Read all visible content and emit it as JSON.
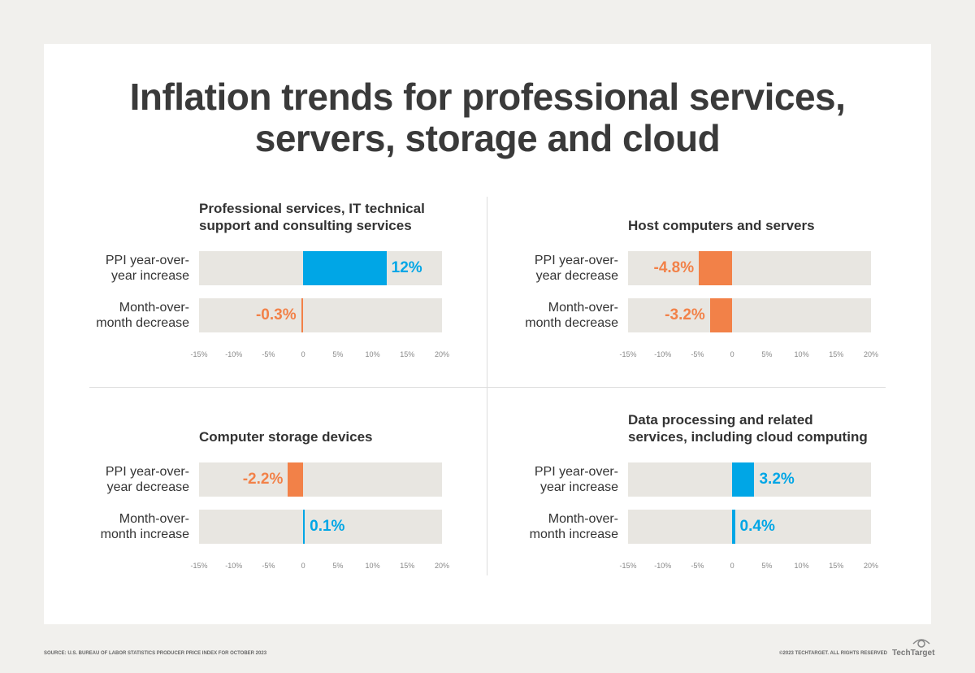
{
  "title": "Inflation trends for professional services,\nservers, storage and cloud",
  "chart_data": [
    {
      "type": "bar",
      "title": "Professional services, IT technical\nsupport and consulting services",
      "categories": [
        "PPI year-over-\nyear increase",
        "Month-over-\nmonth decrease"
      ],
      "values": [
        12,
        -0.3
      ],
      "value_labels": [
        "12%",
        "-0.3%"
      ],
      "colors": [
        "#00a6e6",
        "#f28148"
      ],
      "xlim": [
        -15,
        20
      ],
      "xticks": [
        {
          "value": -15,
          "label": "-15%"
        },
        {
          "value": -10,
          "label": "-10%"
        },
        {
          "value": -5,
          "label": "-5%"
        },
        0,
        {
          "value": 5,
          "label": "5%"
        },
        {
          "value": 10,
          "label": "10%"
        },
        {
          "value": 15,
          "label": "15%"
        },
        {
          "value": 20,
          "label": "20%"
        }
      ]
    },
    {
      "type": "bar",
      "title": "Host computers and servers",
      "categories": [
        "PPI year-over-\nyear decrease",
        "Month-over-\nmonth decrease"
      ],
      "values": [
        -4.8,
        -3.2
      ],
      "value_labels": [
        "-4.8%",
        "-3.2%"
      ],
      "colors": [
        "#f28148",
        "#f28148"
      ],
      "xlim": [
        -15,
        20
      ],
      "xticks": [
        {
          "value": -15,
          "label": "-15%"
        },
        {
          "value": -10,
          "label": "-10%"
        },
        {
          "value": -5,
          "label": "-5%"
        },
        0,
        {
          "value": 5,
          "label": "5%"
        },
        {
          "value": 10,
          "label": "10%"
        },
        {
          "value": 15,
          "label": "15%"
        },
        {
          "value": 20,
          "label": "20%"
        }
      ]
    },
    {
      "type": "bar",
      "title": "Computer storage devices",
      "categories": [
        "PPI year-over-\nyear decrease",
        "Month-over-\nmonth increase"
      ],
      "values": [
        -2.2,
        0.1
      ],
      "value_labels": [
        "-2.2%",
        "0.1%"
      ],
      "colors": [
        "#f28148",
        "#00a6e6"
      ],
      "xlim": [
        -15,
        20
      ],
      "xticks": [
        {
          "value": -15,
          "label": "-15%"
        },
        {
          "value": -10,
          "label": "-10%"
        },
        {
          "value": -5,
          "label": "-5%"
        },
        0,
        {
          "value": 5,
          "label": "5%"
        },
        {
          "value": 10,
          "label": "10%"
        },
        {
          "value": 15,
          "label": "15%"
        },
        {
          "value": 20,
          "label": "20%"
        }
      ]
    },
    {
      "type": "bar",
      "title": "Data processing and related\nservices, including cloud computing",
      "categories": [
        "PPI year-over-\nyear increase",
        "Month-over-\nmonth increase"
      ],
      "values": [
        3.2,
        0.4
      ],
      "value_labels": [
        "3.2%",
        "0.4%"
      ],
      "colors": [
        "#00a6e6",
        "#00a6e6"
      ],
      "xlim": [
        -15,
        20
      ],
      "xticks": [
        {
          "value": -15,
          "label": "-15%"
        },
        {
          "value": -10,
          "label": "-10%"
        },
        {
          "value": -5,
          "label": "-5%"
        },
        0,
        {
          "value": 5,
          "label": "5%"
        },
        {
          "value": 10,
          "label": "10%"
        },
        {
          "value": 15,
          "label": "15%"
        },
        {
          "value": 20,
          "label": "20%"
        }
      ]
    }
  ],
  "source": "SOURCE: U.S. BUREAU OF LABOR STATISTICS PRODUCER PRICE INDEX FOR OCTOBER 2023",
  "copyright": "©2023 TECHTARGET. ALL RIGHTS RESERVED",
  "logo": "TechTarget"
}
